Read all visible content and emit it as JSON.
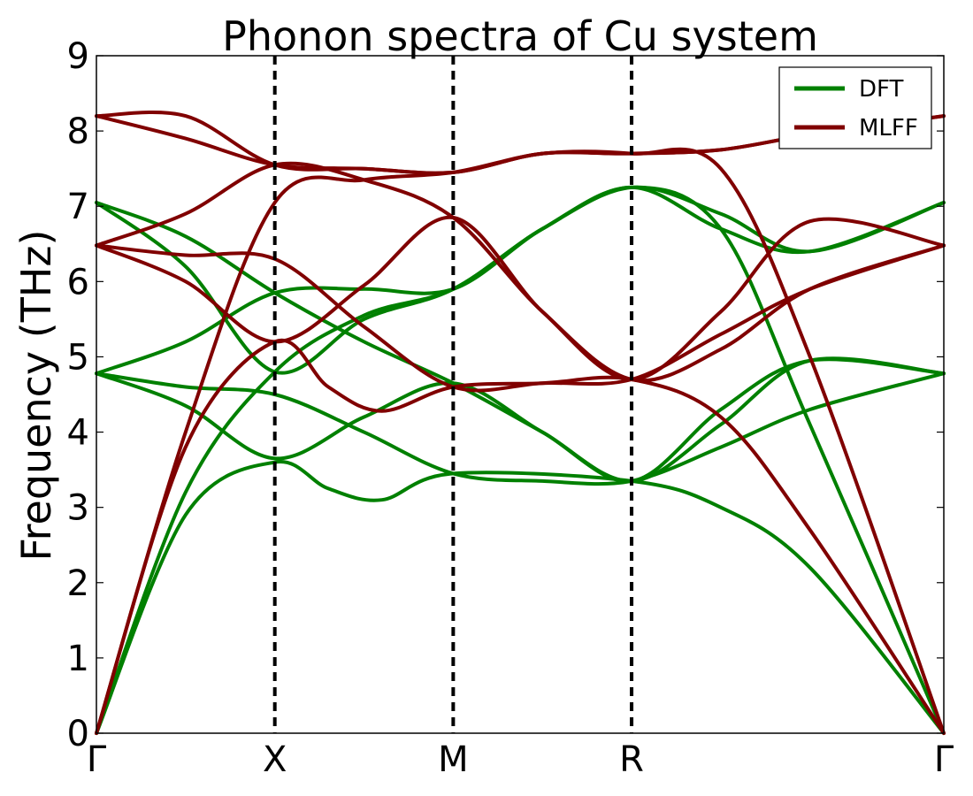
{
  "chart_data": {
    "type": "line",
    "title": "Phonon spectra of Cu system",
    "xlabel": "",
    "ylabel": "Frequency (THz)",
    "ylim": [
      0,
      9
    ],
    "xlim": [
      0,
      4.75
    ],
    "yticks": [
      0,
      1,
      2,
      3,
      4,
      5,
      6,
      7,
      8,
      9
    ],
    "x_ticks": [
      {
        "x": 0,
        "label": "Γ"
      },
      {
        "x": 1,
        "label": "X"
      },
      {
        "x": 2,
        "label": "M"
      },
      {
        "x": 3,
        "label": "R"
      },
      {
        "x": 4.75,
        "label": "Γ"
      }
    ],
    "vlines": [
      1,
      2,
      3
    ],
    "grid": false,
    "legend": {
      "placement": "top-right",
      "entries": [
        {
          "label": "DFT",
          "color": "#008000"
        },
        {
          "label": "MLFF",
          "color": "#800000"
        }
      ]
    },
    "series": [
      {
        "name": "DFT",
        "color": "#008000",
        "bands": [
          [
            [
              0,
              0
            ],
            [
              0.5,
              2.9
            ],
            [
              1,
              3.6
            ],
            [
              1.3,
              3.25
            ],
            [
              1.6,
              3.1
            ],
            [
              2,
              3.45
            ],
            [
              3,
              3.35
            ],
            [
              3.5,
              3.0
            ],
            [
              4,
              2.2
            ],
            [
              4.75,
              0
            ]
          ],
          [
            [
              0,
              0
            ],
            [
              0.5,
              3.2
            ],
            [
              1,
              4.8
            ],
            [
              1.5,
              5.55
            ],
            [
              2,
              5.9
            ],
            [
              2.5,
              6.7
            ],
            [
              3,
              7.25
            ],
            [
              3.5,
              6.7
            ],
            [
              4,
              4.1
            ],
            [
              4.75,
              0
            ]
          ],
          [
            [
              0,
              4.78
            ],
            [
              0.5,
              4.6
            ],
            [
              1,
              4.5
            ],
            [
              1.5,
              4.0
            ],
            [
              2,
              3.45
            ],
            [
              2.5,
              3.35
            ],
            [
              3,
              3.35
            ],
            [
              3.5,
              3.8
            ],
            [
              4,
              4.3
            ],
            [
              4.75,
              4.78
            ]
          ],
          [
            [
              0,
              4.78
            ],
            [
              0.5,
              4.35
            ],
            [
              1,
              3.65
            ],
            [
              1.5,
              4.2
            ],
            [
              2,
              4.65
            ],
            [
              2.5,
              4.0
            ],
            [
              3,
              3.35
            ],
            [
              3.5,
              4.3
            ],
            [
              4,
              4.95
            ],
            [
              4.75,
              4.78
            ]
          ],
          [
            [
              0,
              4.78
            ],
            [
              0.5,
              5.2
            ],
            [
              1,
              5.85
            ],
            [
              1.5,
              5.9
            ],
            [
              2,
              5.9
            ],
            [
              2.5,
              6.7
            ],
            [
              3,
              7.25
            ],
            [
              3.5,
              6.9
            ],
            [
              4,
              6.4
            ],
            [
              4.75,
              7.05
            ]
          ],
          [
            [
              0,
              7.05
            ],
            [
              0.5,
              6.6
            ],
            [
              1,
              5.85
            ],
            [
              1.5,
              5.2
            ],
            [
              2,
              4.65
            ],
            [
              2.5,
              4.0
            ],
            [
              3,
              3.35
            ],
            [
              3.5,
              4.1
            ],
            [
              4,
              4.95
            ],
            [
              4.75,
              4.78
            ]
          ],
          [
            [
              0,
              7.05
            ],
            [
              0.5,
              6.2
            ],
            [
              1,
              4.8
            ],
            [
              1.5,
              5.5
            ],
            [
              2,
              5.9
            ],
            [
              2.5,
              6.7
            ],
            [
              3,
              7.25
            ],
            [
              3.5,
              6.7
            ],
            [
              4,
              6.4
            ],
            [
              4.75,
              7.05
            ]
          ]
        ]
      },
      {
        "name": "MLFF",
        "color": "#800000",
        "bands": [
          [
            [
              0,
              0
            ],
            [
              0.5,
              3.8
            ],
            [
              1,
              5.2
            ],
            [
              1.3,
              4.6
            ],
            [
              1.6,
              4.28
            ],
            [
              2,
              4.6
            ],
            [
              2.5,
              4.65
            ],
            [
              3,
              4.7
            ],
            [
              3.5,
              4.2
            ],
            [
              4,
              2.7
            ],
            [
              4.75,
              0
            ]
          ],
          [
            [
              0,
              0
            ],
            [
              0.5,
              4.0
            ],
            [
              1,
              7.05
            ],
            [
              1.5,
              7.35
            ],
            [
              2,
              7.45
            ],
            [
              2.5,
              7.7
            ],
            [
              3,
              7.7
            ],
            [
              3.5,
              7.5
            ],
            [
              4,
              5.0
            ],
            [
              4.75,
              0
            ]
          ],
          [
            [
              0,
              6.48
            ],
            [
              0.5,
              6.35
            ],
            [
              1,
              6.3
            ],
            [
              1.5,
              5.4
            ],
            [
              2,
              4.6
            ],
            [
              2.5,
              4.65
            ],
            [
              3,
              4.7
            ],
            [
              3.5,
              5.3
            ],
            [
              4,
              5.9
            ],
            [
              4.75,
              6.48
            ]
          ],
          [
            [
              0,
              6.48
            ],
            [
              0.5,
              6.0
            ],
            [
              1,
              5.2
            ],
            [
              1.5,
              5.95
            ],
            [
              2,
              6.85
            ],
            [
              2.5,
              5.6
            ],
            [
              3,
              4.7
            ],
            [
              3.5,
              5.6
            ],
            [
              4,
              6.8
            ],
            [
              4.75,
              6.48
            ]
          ],
          [
            [
              0,
              6.48
            ],
            [
              0.5,
              6.9
            ],
            [
              1,
              7.55
            ],
            [
              1.5,
              7.35
            ],
            [
              2,
              6.85
            ],
            [
              2.5,
              5.6
            ],
            [
              3,
              4.7
            ],
            [
              3.5,
              5.1
            ],
            [
              4,
              5.9
            ],
            [
              4.75,
              6.48
            ]
          ],
          [
            [
              0,
              8.2
            ],
            [
              0.5,
              7.9
            ],
            [
              1,
              7.55
            ],
            [
              1.5,
              7.5
            ],
            [
              2,
              7.45
            ],
            [
              2.5,
              7.7
            ],
            [
              3,
              7.7
            ],
            [
              3.5,
              7.75
            ],
            [
              4,
              7.95
            ],
            [
              4.75,
              8.2
            ]
          ],
          [
            [
              0,
              8.2
            ],
            [
              0.5,
              8.2
            ],
            [
              1,
              7.55
            ],
            [
              1.5,
              7.5
            ],
            [
              2,
              7.45
            ],
            [
              2.5,
              7.7
            ],
            [
              3,
              7.7
            ],
            [
              3.5,
              7.75
            ],
            [
              4,
              7.95
            ],
            [
              4.75,
              8.2
            ]
          ]
        ]
      }
    ]
  }
}
